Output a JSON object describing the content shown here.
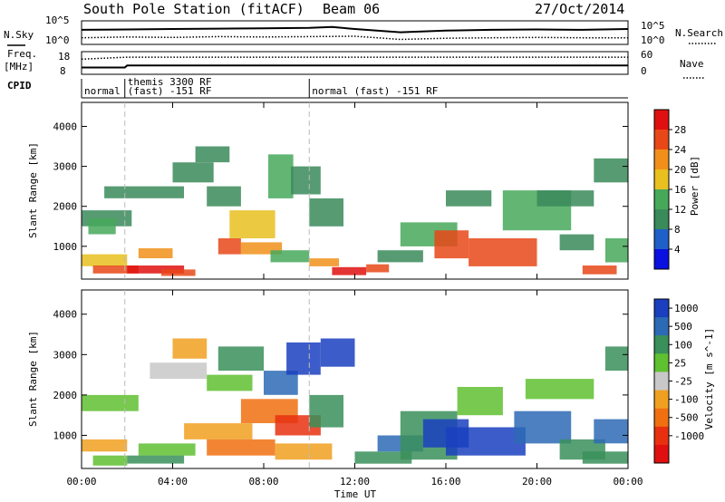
{
  "header": {
    "station": "South Pole Station (fitACF)",
    "beam": "Beam 06",
    "date": "27/Oct/2014"
  },
  "top_panels": {
    "nsky_label": "N.Sky",
    "nsearch_label": "N.Search",
    "noise_ticks_left": [
      "10^5",
      "10^0"
    ],
    "noise_ticks_right": [
      "10^5",
      "10^0"
    ],
    "freq_label_1": "Freq.",
    "freq_label_2": "[MHz]",
    "freq_ticks": [
      "18",
      "8"
    ],
    "nave_label": "Nave",
    "nave_ticks": [
      "60",
      "0"
    ],
    "cpid_label": "CPID",
    "cpid_segments": [
      {
        "start_hour": 0.0,
        "end_hour": 1.9,
        "line1": "normal",
        "line2": ""
      },
      {
        "start_hour": 1.9,
        "end_hour": 10.0,
        "line1": "themis 3300 RF",
        "line2": "(fast) -151 RF"
      },
      {
        "start_hour": 10.0,
        "end_hour": 24.0,
        "line1": "normal (fast) -151 RF",
        "line2": ""
      }
    ]
  },
  "axes": {
    "ylabel": "Slant Range [km]",
    "xlabel": "Time UT",
    "y_ticks": [
      "1000",
      "2000",
      "3000",
      "4000"
    ],
    "x_ticks": [
      "00:00",
      "04:00",
      "08:00",
      "12:00",
      "16:00",
      "20:00",
      "00:00"
    ]
  },
  "colorbars": {
    "power": {
      "title": "Power [dB]",
      "labels": [
        "4",
        "8",
        "12",
        "16",
        "20",
        "24",
        "28"
      ],
      "colors": [
        "#0a10e0",
        "#1f5fc8",
        "#3a8a5a",
        "#47a85a",
        "#e8c020",
        "#f0901a",
        "#e84818",
        "#e01010"
      ]
    },
    "velocity": {
      "title": "Velocity [m s^-1]",
      "labels": [
        "1000",
        "500",
        "100",
        "25",
        "-25",
        "-100",
        "-500",
        "-1000"
      ],
      "colors": [
        "#1a3fbf",
        "#2d6ab5",
        "#3a8f5a",
        "#5fc030",
        "#c8c8c8",
        "#f0a020",
        "#f07010",
        "#e83010",
        "#e01010"
      ]
    }
  },
  "chart_data": [
    {
      "type": "line",
      "title": "N.Sky / N.Search noise",
      "x_unit": "hour UT",
      "ylim_log10": [
        0,
        5
      ],
      "series": [
        {
          "name": "N.Sky",
          "x": [
            0,
            2,
            4,
            6,
            8,
            10,
            11,
            12,
            14,
            16,
            18,
            20,
            22,
            24
          ],
          "log10_values": [
            3.2,
            3.3,
            3.4,
            3.5,
            3.6,
            3.7,
            3.9,
            3.4,
            2.6,
            3.0,
            3.2,
            3.3,
            3.2,
            3.4
          ]
        },
        {
          "name": "N.Search",
          "x": [
            0,
            2,
            4,
            6,
            8,
            10,
            12,
            14,
            16,
            18,
            20,
            22,
            24
          ],
          "log10_values": [
            1.2,
            1.4,
            1.3,
            1.5,
            1.4,
            1.5,
            1.6,
            0.8,
            1.1,
            1.2,
            1.3,
            1.2,
            1.2
          ]
        }
      ]
    },
    {
      "type": "line",
      "title": "Freq [MHz] / Nave",
      "x_unit": "hour UT",
      "series": [
        {
          "name": "Freq",
          "x": [
            0,
            1.9,
            2.0,
            24
          ],
          "values": [
            10.5,
            10.5,
            11.5,
            11.5
          ]
        },
        {
          "name": "Nave",
          "x": [
            0,
            2,
            24
          ],
          "values": [
            40,
            46,
            46
          ]
        }
      ]
    },
    {
      "type": "heatmap",
      "title": "Power [dB]",
      "x_unit": "hour UT",
      "xlim": [
        0,
        24
      ],
      "ylim": [
        180,
        4600
      ],
      "cells": [
        [
          0.0,
          2.2,
          1500,
          1900,
          8
        ],
        [
          0.3,
          1.5,
          1300,
          1700,
          12
        ],
        [
          0.0,
          2.0,
          500,
          800,
          16
        ],
        [
          0.5,
          2.5,
          320,
          520,
          24
        ],
        [
          2.0,
          4.5,
          320,
          520,
          28
        ],
        [
          3.5,
          5.0,
          260,
          420,
          24
        ],
        [
          2.5,
          4.0,
          700,
          950,
          20
        ],
        [
          1.0,
          4.5,
          2200,
          2500,
          8
        ],
        [
          4.0,
          5.8,
          2600,
          3100,
          8
        ],
        [
          5.0,
          6.5,
          3100,
          3500,
          8
        ],
        [
          5.5,
          7.0,
          2000,
          2500,
          8
        ],
        [
          6.0,
          7.0,
          800,
          1200,
          24
        ],
        [
          6.5,
          8.5,
          1200,
          1900,
          16
        ],
        [
          7.0,
          8.8,
          800,
          1100,
          20
        ],
        [
          8.2,
          9.3,
          2200,
          3300,
          12
        ],
        [
          9.2,
          10.5,
          2300,
          3000,
          8
        ],
        [
          8.3,
          10.0,
          600,
          900,
          12
        ],
        [
          10.0,
          11.5,
          1500,
          2200,
          8
        ],
        [
          10.0,
          11.3,
          500,
          700,
          20
        ],
        [
          11.0,
          12.5,
          280,
          480,
          28
        ],
        [
          12.5,
          13.5,
          350,
          550,
          24
        ],
        [
          13.0,
          15.0,
          600,
          900,
          8
        ],
        [
          14.0,
          16.5,
          1000,
          1600,
          12
        ],
        [
          15.5,
          17.0,
          700,
          1400,
          24
        ],
        [
          16.0,
          18.0,
          2000,
          2400,
          8
        ],
        [
          17.0,
          20.0,
          500,
          1200,
          24
        ],
        [
          18.5,
          21.5,
          1400,
          2400,
          12
        ],
        [
          20.0,
          22.5,
          2000,
          2400,
          8
        ],
        [
          21.0,
          22.5,
          900,
          1300,
          8
        ],
        [
          22.0,
          23.5,
          300,
          520,
          24
        ],
        [
          23.0,
          24.0,
          600,
          1200,
          12
        ],
        [
          22.5,
          24.0,
          2600,
          3200,
          8
        ]
      ]
    },
    {
      "type": "heatmap",
      "title": "Velocity [m s^-1]",
      "x_unit": "hour UT",
      "xlim": [
        0,
        24
      ],
      "ylim": [
        180,
        4600
      ],
      "cells": [
        [
          0.0,
          2.5,
          1600,
          2000,
          25
        ],
        [
          0.0,
          2.0,
          600,
          900,
          -100
        ],
        [
          0.5,
          2.0,
          250,
          500,
          25
        ],
        [
          2.5,
          5.0,
          500,
          800,
          25
        ],
        [
          2.0,
          4.5,
          300,
          500,
          100
        ],
        [
          3.0,
          5.5,
          2400,
          2800,
          -25
        ],
        [
          4.0,
          5.5,
          2900,
          3400,
          -100
        ],
        [
          5.5,
          7.5,
          2100,
          2500,
          25
        ],
        [
          6.0,
          8.0,
          2600,
          3200,
          100
        ],
        [
          4.5,
          7.5,
          900,
          1300,
          -100
        ],
        [
          5.5,
          8.5,
          500,
          900,
          -500
        ],
        [
          7.0,
          9.5,
          1300,
          1900,
          -500
        ],
        [
          8.5,
          10.5,
          1000,
          1500,
          -1000
        ],
        [
          8.0,
          9.5,
          2000,
          2600,
          500
        ],
        [
          9.0,
          10.5,
          2500,
          3300,
          1000
        ],
        [
          8.5,
          11.0,
          400,
          800,
          -100
        ],
        [
          10.0,
          11.5,
          1200,
          2000,
          100
        ],
        [
          10.5,
          12.0,
          2700,
          3400,
          1000
        ],
        [
          12.0,
          14.5,
          300,
          600,
          100
        ],
        [
          13.0,
          15.0,
          600,
          1000,
          500
        ],
        [
          14.0,
          16.5,
          400,
          1600,
          100
        ],
        [
          15.0,
          17.0,
          700,
          1400,
          1000
        ],
        [
          16.5,
          18.5,
          1500,
          2200,
          25
        ],
        [
          16.0,
          19.5,
          500,
          1200,
          1000
        ],
        [
          19.0,
          21.5,
          800,
          1600,
          500
        ],
        [
          19.5,
          22.5,
          1900,
          2400,
          25
        ],
        [
          21.0,
          23.0,
          400,
          900,
          100
        ],
        [
          22.5,
          24.0,
          800,
          1400,
          500
        ],
        [
          23.0,
          24.0,
          2600,
          3200,
          100
        ],
        [
          22.0,
          24.0,
          300,
          600,
          100
        ]
      ]
    }
  ]
}
